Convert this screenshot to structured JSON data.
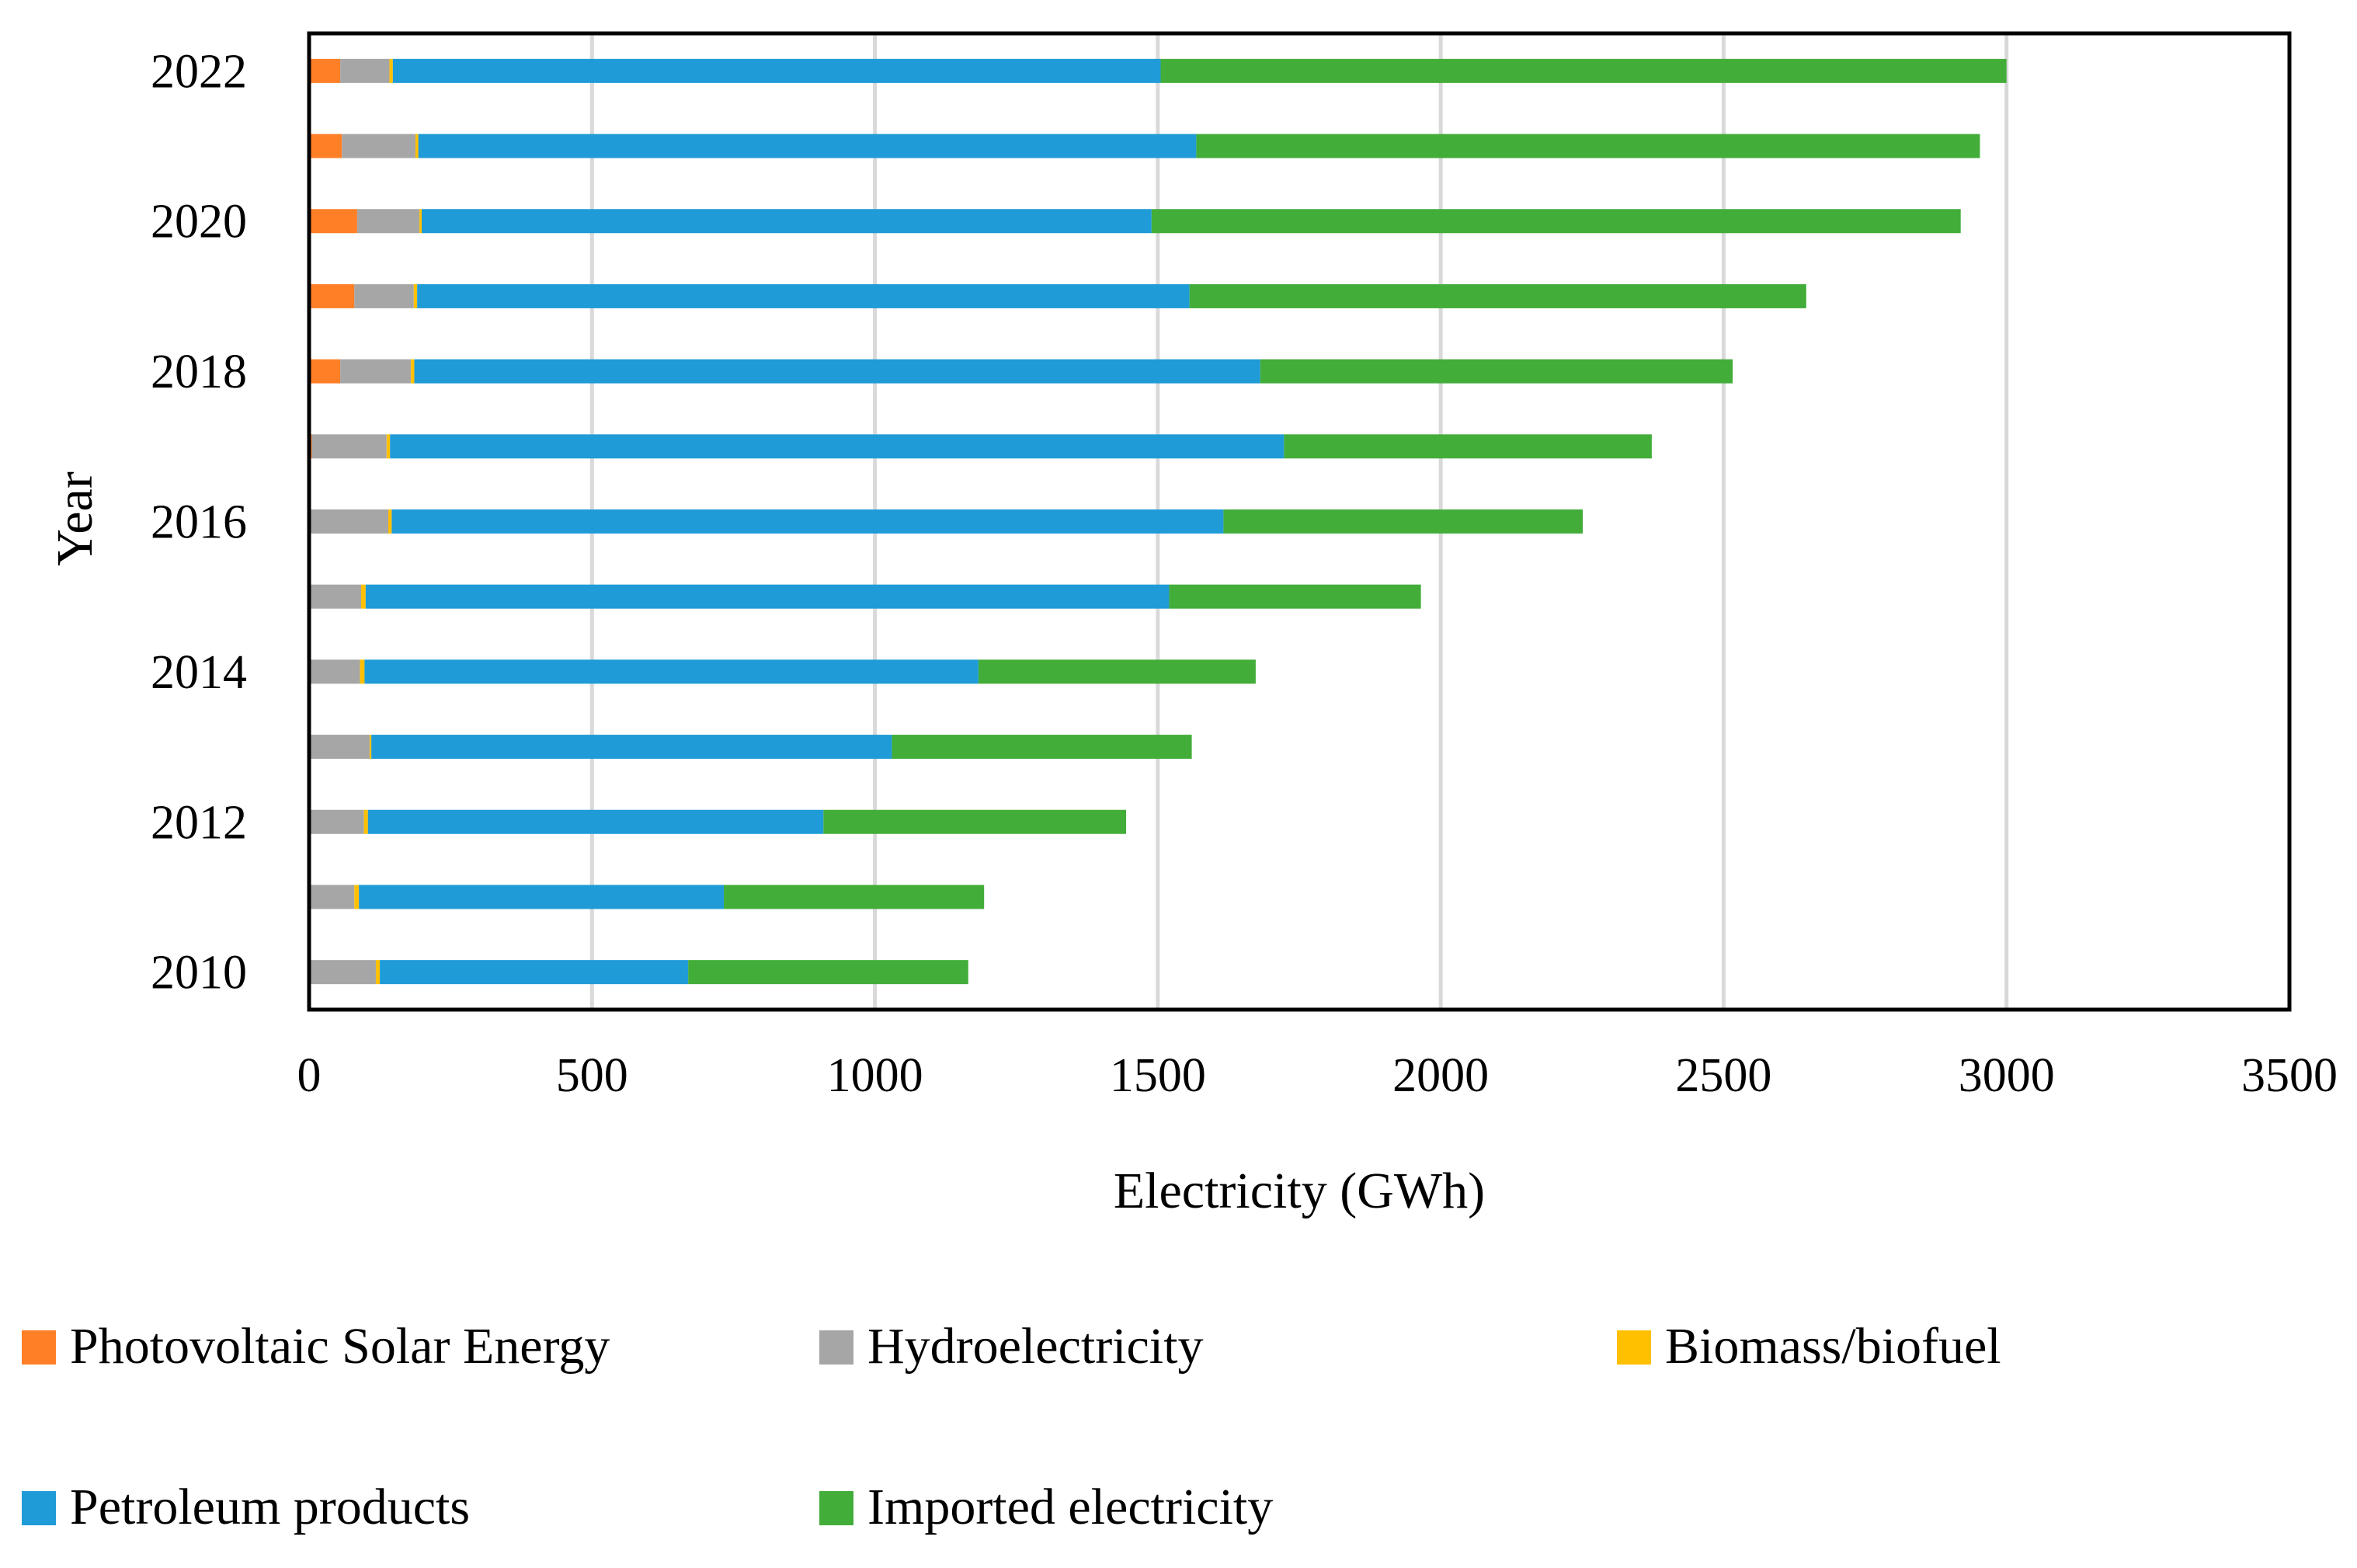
{
  "chart_data": {
    "type": "bar",
    "orientation": "horizontal",
    "stacked": true,
    "title": "",
    "xlabel": "Electricity (GWh)",
    "ylabel": "Year",
    "xlim": [
      0,
      3500
    ],
    "x_ticks": [
      0,
      500,
      1000,
      1500,
      2000,
      2500,
      3000,
      3500
    ],
    "x_tick_labels": [
      "0",
      "500",
      "1000",
      "1500",
      "2000",
      "2500",
      "3000",
      "3500"
    ],
    "grid": "vertical",
    "legend_position": "bottom",
    "categories": [
      "2010",
      "2011",
      "2012",
      "2013",
      "2014",
      "2015",
      "2016",
      "2017",
      "2018",
      "2019",
      "2020",
      "2021",
      "2022"
    ],
    "category_labels_shown": [
      "2010",
      "",
      "2012",
      "",
      "2014",
      "",
      "2016",
      "",
      "2018",
      "",
      "2020",
      "",
      "2022"
    ],
    "series": [
      {
        "name": "Photovoltaic Solar Energy",
        "color": "#FF7F27",
        "values": [
          0,
          0,
          0,
          0,
          0,
          0,
          0,
          5,
          55,
          80,
          85,
          58,
          55
        ]
      },
      {
        "name": "Hydroelectricity",
        "color": "#A6A6A6",
        "values": [
          118,
          80,
          97,
          107,
          90,
          92,
          140,
          132,
          125,
          105,
          110,
          130,
          87
        ]
      },
      {
        "name": "Biomass/biofuel",
        "color": "#FFC000",
        "values": [
          7,
          8,
          7,
          3,
          8,
          8,
          6,
          6,
          6,
          6,
          4,
          5,
          6
        ]
      },
      {
        "name": "Petroleum products",
        "color": "#1F9BD7",
        "values": [
          545,
          645,
          805,
          920,
          1085,
          1420,
          1470,
          1580,
          1495,
          1365,
          1290,
          1375,
          1357
        ]
      },
      {
        "name": "Imported electricity",
        "color": "#43AD3A",
        "values": [
          495,
          460,
          535,
          530,
          490,
          445,
          635,
          650,
          835,
          1090,
          1430,
          1385,
          1495
        ]
      }
    ]
  }
}
